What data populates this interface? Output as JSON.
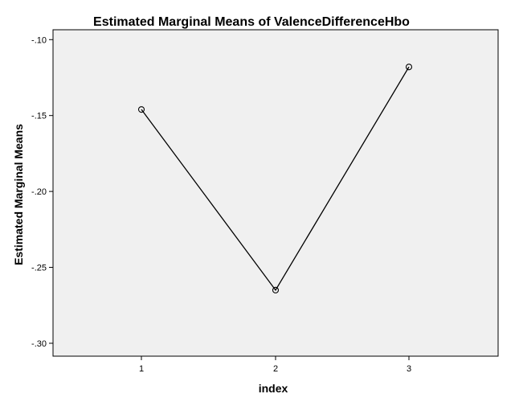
{
  "chart_data": {
    "type": "line",
    "title": "Estimated Marginal Means of ValenceDifferenceHbo",
    "xlabel": "index",
    "ylabel": "Estimated Marginal Means",
    "categories": [
      "1",
      "2",
      "3"
    ],
    "values": [
      -0.146,
      -0.265,
      -0.118
    ],
    "y_ticks": [
      -0.1,
      -0.15,
      -0.2,
      -0.25,
      -0.3
    ],
    "y_tick_labels": [
      "-.10",
      "-.15",
      "-.20",
      "-.25",
      "-.30"
    ],
    "ylim": [
      -0.3085,
      -0.0935
    ],
    "grid": false,
    "legend": "none",
    "marker": "open-circle",
    "colors": {
      "plot_background": "#f0f0f0",
      "line": "#000000",
      "frame": "#000000"
    }
  }
}
